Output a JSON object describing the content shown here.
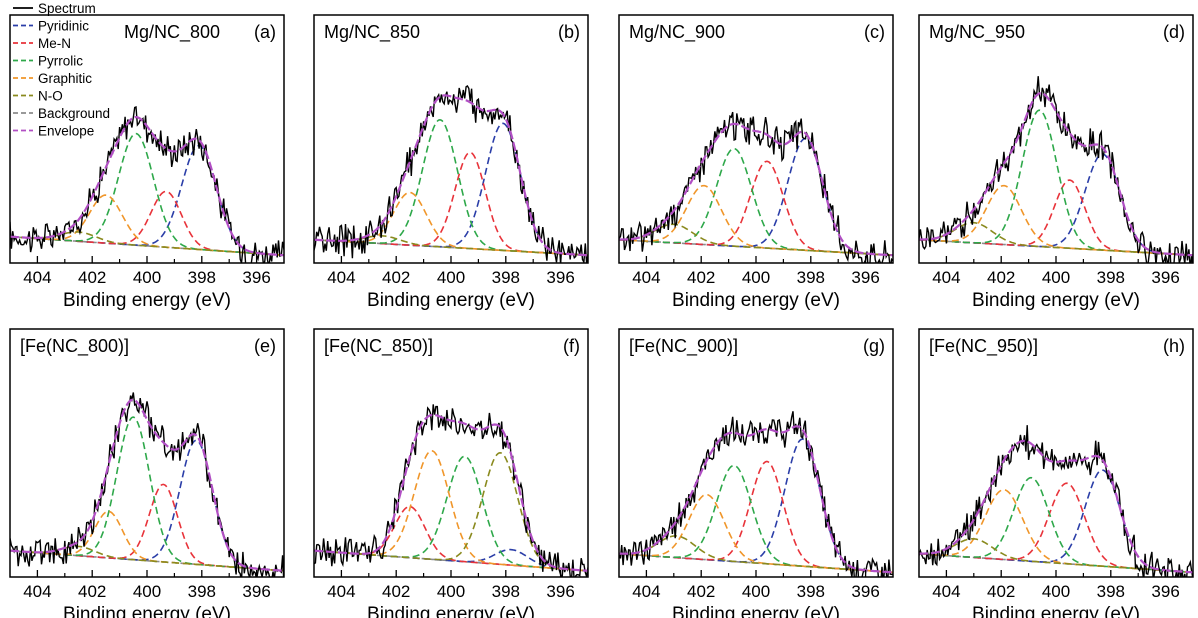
{
  "legend": {
    "placement": "top-left of panel (a)",
    "items": [
      {
        "key": "spectrum",
        "label": "Spectrum",
        "color": "#000000",
        "dash": "solid"
      },
      {
        "key": "pyridinic",
        "label": "Pyridinic",
        "color": "#2b3ea8",
        "dash": "dashed"
      },
      {
        "key": "men",
        "label": "Me-N",
        "color": "#e8333a",
        "dash": "dashed"
      },
      {
        "key": "pyrrolic",
        "label": "Pyrrolic",
        "color": "#2ea84a",
        "dash": "dashed"
      },
      {
        "key": "graphitic",
        "label": "Graphitic",
        "color": "#f0962a",
        "dash": "dashed"
      },
      {
        "key": "no",
        "label": "N-O",
        "color": "#8a8a1e",
        "dash": "dashed"
      },
      {
        "key": "background",
        "label": "Background",
        "color": "#8c8c8c",
        "dash": "dashed"
      },
      {
        "key": "envelope",
        "label": "Envelope",
        "color": "#b14fc4",
        "dash": "dashed"
      }
    ]
  },
  "chart_data": [
    {
      "type": "line",
      "panel": "a",
      "title": "Mg/NC_800",
      "letter": "(a)",
      "xlabel": "Binding energy (eV)",
      "ylabel": "",
      "xlim": [
        405,
        395
      ],
      "xticks": [
        "404",
        "402",
        "400",
        "398",
        "396"
      ],
      "xreversed": true,
      "yticks": false,
      "grid": false,
      "background": {
        "x": [
          405,
          395
        ],
        "y": [
          0.02,
          -0.1
        ]
      },
      "series": [
        {
          "name": "Pyridinic",
          "kind": "gauss",
          "center": 398.1,
          "height": 0.67,
          "fwhm": 1.5
        },
        {
          "name": "Me-N",
          "kind": "gauss",
          "center": 399.3,
          "height": 0.36,
          "fwhm": 1.3
        },
        {
          "name": "Pyrrolic",
          "kind": "gauss",
          "center": 400.4,
          "height": 0.72,
          "fwhm": 1.5
        },
        {
          "name": "Graphitic",
          "kind": "gauss",
          "center": 401.5,
          "height": 0.31,
          "fwhm": 1.4
        },
        {
          "name": "N-O",
          "kind": "gauss",
          "center": 402.5,
          "height": 0.06,
          "fwhm": 1.5
        }
      ]
    },
    {
      "type": "line",
      "panel": "b",
      "title": "Mg/NC_850",
      "letter": "(b)",
      "xlabel": "Binding energy (eV)",
      "ylabel": "",
      "xlim": [
        405,
        395
      ],
      "xticks": [
        "404",
        "402",
        "400",
        "398",
        "396"
      ],
      "xreversed": true,
      "yticks": false,
      "grid": false,
      "background": {
        "x": [
          405,
          395
        ],
        "y": [
          0.0,
          -0.1
        ]
      },
      "series": [
        {
          "name": "Pyridinic",
          "kind": "gauss",
          "center": 398.1,
          "height": 0.82,
          "fwhm": 1.5
        },
        {
          "name": "Me-N",
          "kind": "gauss",
          "center": 399.3,
          "height": 0.62,
          "fwhm": 1.3
        },
        {
          "name": "Pyrrolic",
          "kind": "gauss",
          "center": 400.4,
          "height": 0.82,
          "fwhm": 1.5
        },
        {
          "name": "Graphitic",
          "kind": "gauss",
          "center": 401.5,
          "height": 0.34,
          "fwhm": 1.4
        },
        {
          "name": "N-O",
          "kind": "gauss",
          "center": 402.5,
          "height": 0.05,
          "fwhm": 1.5
        }
      ]
    },
    {
      "type": "line",
      "panel": "c",
      "title": "Mg/NC_900",
      "letter": "(c)",
      "xlabel": "Binding energy (eV)",
      "ylabel": "",
      "xlim": [
        405,
        395
      ],
      "xticks": [
        "404",
        "402",
        "400",
        "398",
        "396"
      ],
      "xreversed": true,
      "yticks": false,
      "grid": false,
      "background": {
        "x": [
          405,
          395
        ],
        "y": [
          0.0,
          -0.1
        ]
      },
      "series": [
        {
          "name": "Pyridinic",
          "kind": "gauss",
          "center": 398.2,
          "height": 0.72,
          "fwhm": 1.5
        },
        {
          "name": "Me-N",
          "kind": "gauss",
          "center": 399.6,
          "height": 0.56,
          "fwhm": 1.4
        },
        {
          "name": "Pyrrolic",
          "kind": "gauss",
          "center": 400.8,
          "height": 0.63,
          "fwhm": 1.5
        },
        {
          "name": "Graphitic",
          "kind": "gauss",
          "center": 401.9,
          "height": 0.38,
          "fwhm": 1.5
        },
        {
          "name": "N-O",
          "kind": "gauss",
          "center": 403.0,
          "height": 0.12,
          "fwhm": 1.6
        }
      ]
    },
    {
      "type": "line",
      "panel": "d",
      "title": "Mg/NC_950",
      "letter": "(d)",
      "xlabel": "Binding energy (eV)",
      "ylabel": "",
      "xlim": [
        405,
        395
      ],
      "xticks": [
        "404",
        "402",
        "400",
        "398",
        "396"
      ],
      "xreversed": true,
      "yticks": false,
      "grid": false,
      "background": {
        "x": [
          405,
          395
        ],
        "y": [
          0.0,
          -0.1
        ]
      },
      "series": [
        {
          "name": "Pyridinic",
          "kind": "gauss",
          "center": 398.3,
          "height": 0.62,
          "fwhm": 1.5
        },
        {
          "name": "Me-N",
          "kind": "gauss",
          "center": 399.5,
          "height": 0.44,
          "fwhm": 1.3
        },
        {
          "name": "Pyrrolic",
          "kind": "gauss",
          "center": 400.6,
          "height": 0.88,
          "fwhm": 1.5
        },
        {
          "name": "Graphitic",
          "kind": "gauss",
          "center": 401.9,
          "height": 0.38,
          "fwhm": 1.5
        },
        {
          "name": "N-O",
          "kind": "gauss",
          "center": 403.0,
          "height": 0.13,
          "fwhm": 1.6
        }
      ]
    },
    {
      "type": "line",
      "panel": "e",
      "title": "[Fe(NC_800)]",
      "letter": "(e)",
      "xlabel": "Binding energy (eV)",
      "ylabel": "",
      "xlim": [
        405,
        395
      ],
      "xticks": [
        "404",
        "402",
        "400",
        "398",
        "396"
      ],
      "xreversed": true,
      "yticks": false,
      "grid": false,
      "background": {
        "x": [
          405,
          395
        ],
        "y": [
          0.02,
          -0.11
        ]
      },
      "series": [
        {
          "name": "Pyridinic",
          "kind": "gauss",
          "center": 398.2,
          "height": 0.8,
          "fwhm": 1.4
        },
        {
          "name": "Me-N",
          "kind": "gauss",
          "center": 399.4,
          "height": 0.5,
          "fwhm": 1.2
        },
        {
          "name": "Pyrrolic",
          "kind": "gauss",
          "center": 400.5,
          "height": 0.92,
          "fwhm": 1.4
        },
        {
          "name": "Graphitic",
          "kind": "gauss",
          "center": 401.4,
          "height": 0.3,
          "fwhm": 1.2
        },
        {
          "name": "N-O",
          "kind": "gauss",
          "center": 402.5,
          "height": 0.06,
          "fwhm": 1.4
        }
      ]
    },
    {
      "type": "line",
      "panel": "f",
      "title": "[Fe(NC_850)]",
      "letter": "(f)",
      "xlabel": "Binding energy (eV)",
      "ylabel": "",
      "xlim": [
        405,
        395
      ],
      "xticks": [
        "404",
        "402",
        "400",
        "398",
        "396"
      ],
      "xreversed": true,
      "yticks": false,
      "grid": false,
      "background": {
        "x": [
          405,
          395
        ],
        "y": [
          0.02,
          -0.11
        ]
      },
      "series": [
        {
          "name": "Pyridinic",
          "kind": "gauss",
          "center": 397.8,
          "height": 0.1,
          "fwhm": 1.4
        },
        {
          "name": "Me-N",
          "kind": "gauss",
          "center": 401.5,
          "height": 0.33,
          "fwhm": 1.3
        },
        {
          "name": "Pyrrolic",
          "kind": "gauss",
          "center": 399.5,
          "height": 0.68,
          "fwhm": 1.5
        },
        {
          "name": "Graphitic",
          "kind": "gauss",
          "center": 400.7,
          "height": 0.7,
          "fwhm": 1.5
        },
        {
          "name": "N-O",
          "kind": "gauss",
          "center": 398.2,
          "height": 0.72,
          "fwhm": 1.5
        }
      ]
    },
    {
      "type": "line",
      "panel": "g",
      "title": "[Fe(NC_900)]",
      "letter": "(g)",
      "xlabel": "Binding energy (eV)",
      "ylabel": "",
      "xlim": [
        405,
        395
      ],
      "xticks": [
        "404",
        "402",
        "400",
        "398",
        "396"
      ],
      "xreversed": true,
      "yticks": false,
      "grid": false,
      "background": {
        "x": [
          405,
          395
        ],
        "y": [
          0.0,
          -0.12
        ]
      },
      "series": [
        {
          "name": "Pyridinic",
          "kind": "gauss",
          "center": 398.3,
          "height": 0.82,
          "fwhm": 1.5
        },
        {
          "name": "Me-N",
          "kind": "gauss",
          "center": 399.6,
          "height": 0.66,
          "fwhm": 1.4
        },
        {
          "name": "Pyrrolic",
          "kind": "gauss",
          "center": 400.8,
          "height": 0.62,
          "fwhm": 1.5
        },
        {
          "name": "Graphitic",
          "kind": "gauss",
          "center": 401.8,
          "height": 0.42,
          "fwhm": 1.5
        },
        {
          "name": "N-O",
          "kind": "gauss",
          "center": 402.9,
          "height": 0.14,
          "fwhm": 1.6
        }
      ]
    },
    {
      "type": "line",
      "panel": "h",
      "title": "[Fe(NC_950)]",
      "letter": "(h)",
      "xlabel": "Binding energy (eV)",
      "ylabel": "",
      "xlim": [
        405,
        395
      ],
      "xticks": [
        "404",
        "402",
        "400",
        "398",
        "396"
      ],
      "xreversed": true,
      "yticks": false,
      "grid": false,
      "background": {
        "x": [
          405,
          395
        ],
        "y": [
          0.0,
          -0.12
        ]
      },
      "series": [
        {
          "name": "Pyridinic",
          "kind": "gauss",
          "center": 398.3,
          "height": 0.62,
          "fwhm": 1.5
        },
        {
          "name": "Me-N",
          "kind": "gauss",
          "center": 399.6,
          "height": 0.52,
          "fwhm": 1.5
        },
        {
          "name": "Pyrrolic",
          "kind": "gauss",
          "center": 400.9,
          "height": 0.54,
          "fwhm": 1.5
        },
        {
          "name": "Graphitic",
          "kind": "gauss",
          "center": 401.9,
          "height": 0.45,
          "fwhm": 1.6
        },
        {
          "name": "N-O",
          "kind": "gauss",
          "center": 403.0,
          "height": 0.12,
          "fwhm": 1.6
        }
      ]
    }
  ]
}
